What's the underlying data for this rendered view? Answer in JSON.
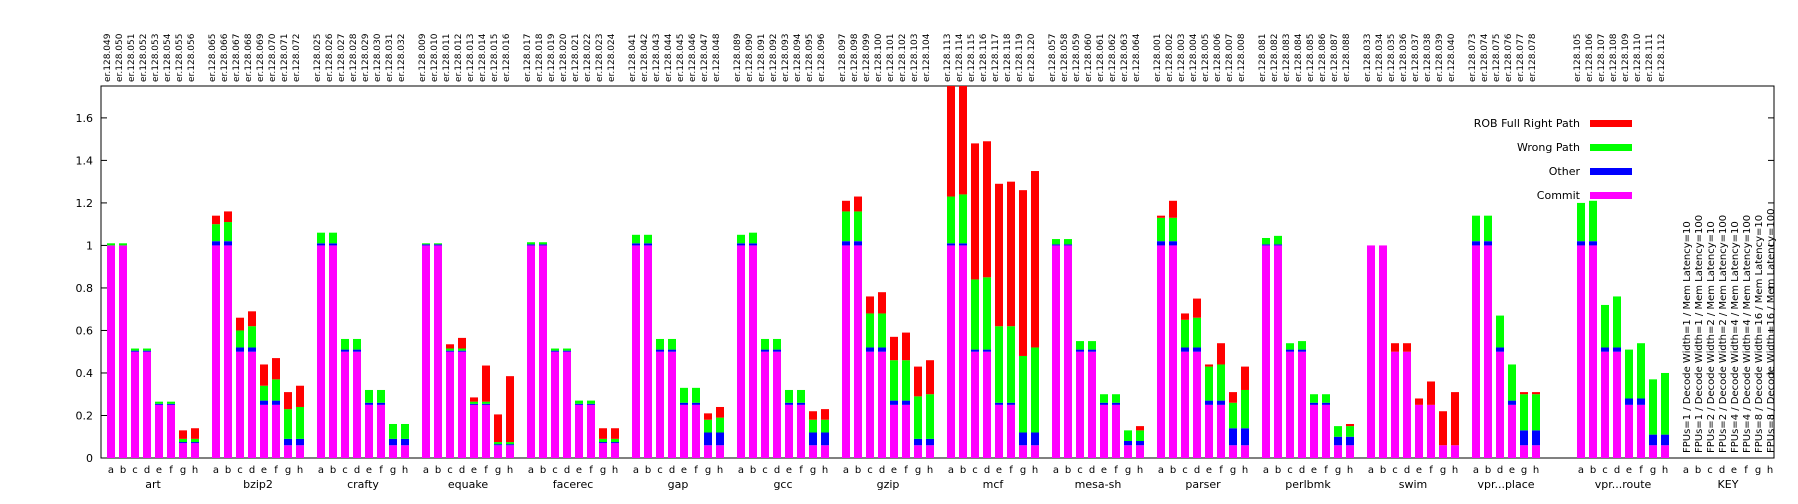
{
  "chart_data": {
    "type": "bar",
    "stacked": true,
    "ylim": [
      0,
      1.75
    ],
    "yticks": [
      0,
      0.2,
      0.4,
      0.6,
      0.8,
      1,
      1.2,
      1.4,
      1.6
    ],
    "ytick_labels": [
      "0",
      "0.2",
      "0.4",
      "0.6",
      "0.8",
      "1",
      "1.2",
      "1.4",
      "1.6"
    ],
    "grid": false,
    "legend_position": "top-right",
    "colors": {
      "Commit": "#ff00ff",
      "Other": "#0000ff",
      "Wrong Path": "#00ff00",
      "ROB Full Right Path": "#ff0000"
    },
    "legend": [
      "ROB Full Right Path",
      "Wrong Path",
      "Other",
      "Commit"
    ],
    "groups": [
      {
        "name": "art",
        "subs": [
          "a",
          "b",
          "c",
          "d",
          "e",
          "f",
          "g",
          "h"
        ],
        "ids": [
          "er.128.049",
          "er.128.050",
          "er.128.051",
          "er.128.052",
          "er.128.053",
          "er.128.054",
          "er.128.055",
          "er.128.056"
        ],
        "commit": [
          1.0,
          1.0,
          0.5,
          0.5,
          0.25,
          0.25,
          0.07,
          0.07
        ],
        "other": [
          0,
          0,
          0.005,
          0.005,
          0.005,
          0.005,
          0.005,
          0.005
        ],
        "wrong": [
          0.01,
          0.01,
          0.01,
          0.01,
          0.01,
          0.01,
          0.015,
          0.015
        ],
        "rob": [
          0,
          0,
          0,
          0,
          0,
          0,
          0.04,
          0.05
        ]
      },
      {
        "name": "bzip2",
        "subs": [
          "a",
          "b",
          "c",
          "d",
          "e",
          "f",
          "g",
          "h"
        ],
        "ids": [
          "er.128.065",
          "er.128.066",
          "er.128.067",
          "er.128.068",
          "er.128.069",
          "er.128.070",
          "er.128.071",
          "er.128.072"
        ],
        "commit": [
          1.0,
          1.0,
          0.5,
          0.5,
          0.25,
          0.25,
          0.06,
          0.06
        ],
        "other": [
          0.02,
          0.02,
          0.02,
          0.02,
          0.02,
          0.02,
          0.03,
          0.03
        ],
        "wrong": [
          0.08,
          0.09,
          0.08,
          0.1,
          0.07,
          0.1,
          0.14,
          0.15
        ],
        "rob": [
          0.04,
          0.05,
          0.06,
          0.07,
          0.1,
          0.1,
          0.08,
          0.1
        ]
      },
      {
        "name": "crafty",
        "subs": [
          "a",
          "b",
          "c",
          "d",
          "e",
          "f",
          "g",
          "h"
        ],
        "ids": [
          "er.128.025",
          "er.128.026",
          "er.128.027",
          "er.128.028",
          "er.128.029",
          "er.128.030",
          "er.128.031",
          "er.128.032"
        ],
        "commit": [
          1.0,
          1.0,
          0.5,
          0.5,
          0.25,
          0.25,
          0.06,
          0.06
        ],
        "other": [
          0.01,
          0.01,
          0.01,
          0.01,
          0.01,
          0.01,
          0.03,
          0.03
        ],
        "wrong": [
          0.05,
          0.05,
          0.05,
          0.05,
          0.06,
          0.06,
          0.07,
          0.07
        ],
        "rob": [
          0,
          0,
          0,
          0,
          0,
          0,
          0,
          0
        ]
      },
      {
        "name": "equake",
        "subs": [
          "a",
          "b",
          "c",
          "d",
          "e",
          "f",
          "g",
          "h"
        ],
        "ids": [
          "er.128.009",
          "er.128.010",
          "er.128.011",
          "er.128.012",
          "er.128.013",
          "er.128.014",
          "er.128.015",
          "er.128.016"
        ],
        "commit": [
          1.0,
          1.0,
          0.5,
          0.5,
          0.25,
          0.25,
          0.06,
          0.06
        ],
        "other": [
          0.005,
          0.005,
          0.005,
          0.005,
          0.005,
          0.005,
          0.005,
          0.005
        ],
        "wrong": [
          0.005,
          0.005,
          0.01,
          0.01,
          0.01,
          0.01,
          0.01,
          0.01
        ],
        "rob": [
          0,
          0,
          0.02,
          0.05,
          0.02,
          0.17,
          0.13,
          0.31
        ]
      },
      {
        "name": "facerec",
        "subs": [
          "a",
          "b",
          "c",
          "d",
          "e",
          "f",
          "g",
          "h"
        ],
        "ids": [
          "er.128.017",
          "er.128.018",
          "er.128.019",
          "er.128.020",
          "er.128.021",
          "er.128.022",
          "er.128.023",
          "er.128.024"
        ],
        "commit": [
          1.0,
          1.0,
          0.5,
          0.5,
          0.25,
          0.25,
          0.07,
          0.07
        ],
        "other": [
          0.005,
          0.005,
          0.005,
          0.005,
          0.005,
          0.005,
          0.005,
          0.005
        ],
        "wrong": [
          0.01,
          0.01,
          0.01,
          0.01,
          0.015,
          0.015,
          0.015,
          0.015
        ],
        "rob": [
          0,
          0,
          0,
          0,
          0,
          0,
          0.05,
          0.05
        ]
      },
      {
        "name": "gap",
        "subs": [
          "a",
          "b",
          "c",
          "d",
          "e",
          "f",
          "g",
          "h"
        ],
        "ids": [
          "er.128.041",
          "er.128.042",
          "er.128.043",
          "er.128.044",
          "er.128.045",
          "er.128.046",
          "er.128.047",
          "er.128.048"
        ],
        "commit": [
          1.0,
          1.0,
          0.5,
          0.5,
          0.25,
          0.25,
          0.06,
          0.06
        ],
        "other": [
          0.01,
          0.01,
          0.01,
          0.01,
          0.01,
          0.01,
          0.06,
          0.06
        ],
        "wrong": [
          0.04,
          0.04,
          0.05,
          0.05,
          0.07,
          0.07,
          0.06,
          0.07
        ],
        "rob": [
          0,
          0,
          0,
          0,
          0,
          0,
          0.03,
          0.05
        ]
      },
      {
        "name": "gcc",
        "subs": [
          "a",
          "b",
          "c",
          "d",
          "e",
          "f",
          "g",
          "h"
        ],
        "ids": [
          "er.128.089",
          "er.128.090",
          "er.128.091",
          "er.128.092",
          "er.128.093",
          "er.128.094",
          "er.128.095",
          "er.128.096"
        ],
        "commit": [
          1.0,
          1.0,
          0.5,
          0.5,
          0.25,
          0.25,
          0.06,
          0.06
        ],
        "other": [
          0.01,
          0.01,
          0.01,
          0.01,
          0.01,
          0.01,
          0.06,
          0.06
        ],
        "wrong": [
          0.04,
          0.05,
          0.05,
          0.05,
          0.06,
          0.06,
          0.06,
          0.06
        ],
        "rob": [
          0,
          0,
          0,
          0,
          0,
          0,
          0.04,
          0.05
        ]
      },
      {
        "name": "gzip",
        "subs": [
          "a",
          "b",
          "c",
          "d",
          "e",
          "f",
          "g",
          "h"
        ],
        "ids": [
          "er.128.097",
          "er.128.098",
          "er.128.099",
          "er.128.100",
          "er.128.101",
          "er.128.102",
          "er.128.103",
          "er.128.104"
        ],
        "commit": [
          1.0,
          1.0,
          0.5,
          0.5,
          0.25,
          0.25,
          0.06,
          0.06
        ],
        "other": [
          0.02,
          0.02,
          0.02,
          0.02,
          0.02,
          0.02,
          0.03,
          0.03
        ],
        "wrong": [
          0.14,
          0.14,
          0.16,
          0.16,
          0.19,
          0.19,
          0.2,
          0.21
        ],
        "rob": [
          0.05,
          0.07,
          0.08,
          0.1,
          0.11,
          0.13,
          0.14,
          0.16
        ]
      },
      {
        "name": "mcf",
        "subs": [
          "a",
          "b",
          "c",
          "d",
          "e",
          "f",
          "g",
          "h"
        ],
        "ids": [
          "er.128.113",
          "er.128.114",
          "er.128.115",
          "er.128.116",
          "er.128.117",
          "er.128.118",
          "er.128.119",
          "er.128.120"
        ],
        "commit": [
          1.0,
          1.0,
          0.5,
          0.5,
          0.25,
          0.25,
          0.06,
          0.06
        ],
        "other": [
          0.01,
          0.01,
          0.01,
          0.01,
          0.01,
          0.01,
          0.06,
          0.06
        ],
        "wrong": [
          0.22,
          0.23,
          0.33,
          0.34,
          0.36,
          0.36,
          0.36,
          0.4
        ],
        "rob": [
          0.52,
          0.53,
          0.64,
          0.64,
          0.67,
          0.68,
          0.78,
          0.83
        ]
      },
      {
        "name": "mesa-sh",
        "subs": [
          "a",
          "b",
          "c",
          "d",
          "e",
          "f",
          "g",
          "h"
        ],
        "ids": [
          "er.128.057",
          "er.128.058",
          "er.128.059",
          "er.128.060",
          "er.128.061",
          "er.128.062",
          "er.128.063",
          "er.128.064"
        ],
        "commit": [
          1.0,
          1.0,
          0.5,
          0.5,
          0.25,
          0.25,
          0.06,
          0.06
        ],
        "other": [
          0.005,
          0.005,
          0.01,
          0.01,
          0.01,
          0.01,
          0.02,
          0.02
        ],
        "wrong": [
          0.025,
          0.025,
          0.04,
          0.04,
          0.04,
          0.04,
          0.05,
          0.05
        ],
        "rob": [
          0,
          0,
          0,
          0,
          0,
          0,
          0,
          0.02
        ]
      },
      {
        "name": "parser",
        "subs": [
          "a",
          "b",
          "c",
          "d",
          "e",
          "f",
          "g",
          "h"
        ],
        "ids": [
          "er.128.001",
          "er.128.002",
          "er.128.003",
          "er.128.004",
          "er.128.005",
          "er.128.006",
          "er.128.007",
          "er.128.008"
        ],
        "commit": [
          1.0,
          1.0,
          0.5,
          0.5,
          0.25,
          0.25,
          0.06,
          0.06
        ],
        "other": [
          0.02,
          0.02,
          0.02,
          0.02,
          0.02,
          0.02,
          0.08,
          0.08
        ],
        "wrong": [
          0.11,
          0.11,
          0.13,
          0.14,
          0.16,
          0.17,
          0.12,
          0.18
        ],
        "rob": [
          0.01,
          0.08,
          0.03,
          0.09,
          0.01,
          0.1,
          0.05,
          0.11
        ]
      },
      {
        "name": "perlbmk",
        "subs": [
          "a",
          "b",
          "c",
          "d",
          "e",
          "f",
          "g",
          "h"
        ],
        "ids": [
          "er.128.081",
          "er.128.082",
          "er.128.083",
          "er.128.084",
          "er.128.085",
          "er.128.086",
          "er.128.087",
          "er.128.088"
        ],
        "commit": [
          1.0,
          1.0,
          0.5,
          0.5,
          0.25,
          0.25,
          0.06,
          0.06
        ],
        "other": [
          0.005,
          0.005,
          0.01,
          0.01,
          0.01,
          0.01,
          0.04,
          0.04
        ],
        "wrong": [
          0.03,
          0.04,
          0.03,
          0.04,
          0.04,
          0.04,
          0.05,
          0.05
        ],
        "rob": [
          0,
          0,
          0,
          0,
          0,
          0,
          0,
          0.01
        ]
      },
      {
        "name": "swim",
        "subs": [
          "a",
          "b",
          "c",
          "d",
          "e",
          "f",
          "g",
          "h"
        ],
        "ids": [
          "er.128.033",
          "er.128.034",
          "er.128.035",
          "er.128.036",
          "er.128.037",
          "er.128.038",
          "er.128.039",
          "er.128.040"
        ],
        "commit": [
          1.0,
          1.0,
          0.5,
          0.5,
          0.25,
          0.25,
          0.06,
          0.06
        ],
        "other": [
          0,
          0,
          0,
          0,
          0,
          0,
          0,
          0
        ],
        "wrong": [
          0,
          0,
          0,
          0,
          0,
          0,
          0,
          0
        ],
        "rob": [
          0,
          0,
          0.04,
          0.04,
          0.03,
          0.11,
          0.16,
          0.25
        ]
      },
      {
        "name": "vpr...place",
        "subs": [
          "a",
          "b",
          "d",
          "e",
          "g",
          "h"
        ],
        "ids": [
          "er.128.073",
          "er.128.074",
          "er.128.075",
          "er.128.076",
          "er.128.077",
          "er.128.078"
        ],
        "commit": [
          1.0,
          1.0,
          0.5,
          0.25,
          0.06,
          0.06
        ],
        "other": [
          0.02,
          0.02,
          0.02,
          0.02,
          0.07,
          0.07
        ],
        "wrong": [
          0.12,
          0.12,
          0.15,
          0.17,
          0.17,
          0.17
        ],
        "rob": [
          0,
          0,
          0,
          0,
          0.01,
          0.01
        ]
      },
      {
        "name": "vpr...route",
        "subs": [
          "a",
          "b",
          "c",
          "d",
          "e",
          "f",
          "g",
          "h"
        ],
        "ids": [
          "er.128.105",
          "er.128.106",
          "er.128.107",
          "er.128.108",
          "er.128.109",
          "er.128.110",
          "er.128.111",
          "er.128.112"
        ],
        "commit": [
          1.0,
          1.0,
          0.5,
          0.5,
          0.25,
          0.25,
          0.06,
          0.06
        ],
        "other": [
          0.02,
          0.02,
          0.02,
          0.02,
          0.03,
          0.03,
          0.05,
          0.05
        ],
        "wrong": [
          0.18,
          0.19,
          0.2,
          0.24,
          0.23,
          0.26,
          0.26,
          0.29
        ],
        "rob": [
          0,
          0,
          0,
          0,
          0,
          0,
          0,
          0
        ]
      }
    ],
    "key": {
      "name": "KEY",
      "subs": [
        "a",
        "b",
        "c",
        "d",
        "e",
        "f",
        "g",
        "h"
      ],
      "lines": [
        "FPUs=1 / Decode Width=1 / Mem Latency=10",
        "FPUs=1 / Decode Width=1 / Mem Latency=100",
        "FPUs=2 / Decode Width=2 / Mem Latency=10",
        "FPUs=2 / Decode Width=2 / Mem Latency=100",
        "FPUs=4 / Decode Width=4 / Mem Latency=10",
        "FPUs=4 / Decode Width=4 / Mem Latency=100",
        "FPUs=8 / Decode Width=16 / Mem Latency=10",
        "FPUs=8 / Decode Width=16 / Mem Latency=100"
      ]
    }
  }
}
